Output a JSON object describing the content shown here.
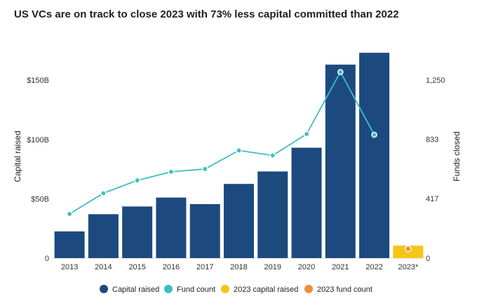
{
  "chart_data": {
    "type": "bar",
    "title": "US VCs are on track to close 2023 with 73% less capital committed than 2022",
    "categories": [
      "2013",
      "2014",
      "2015",
      "2016",
      "2017",
      "2018",
      "2019",
      "2020",
      "2021",
      "2022",
      "2023*"
    ],
    "y_left": {
      "label": "Capital raised",
      "ticks": [
        "0",
        "$50B",
        "$100B",
        "$150B"
      ],
      "tick_values": [
        0,
        50,
        100,
        150
      ],
      "range": [
        0,
        182
      ]
    },
    "y_right": {
      "label": "Funds closed",
      "ticks": [
        "0",
        "417",
        "833",
        "1,250"
      ],
      "tick_values": [
        0,
        417,
        833,
        1250
      ],
      "range": [
        0,
        1515
      ]
    },
    "series": [
      {
        "name": "Capital raised",
        "type": "bar",
        "axis": "left",
        "color": "#1c4a7e",
        "values": [
          22.5,
          37,
          43.5,
          51,
          45.5,
          62.5,
          73,
          93,
          163,
          173,
          null
        ]
      },
      {
        "name": "Fund count",
        "type": "line",
        "axis": "right",
        "color": "#3dbdc6",
        "values": [
          310,
          455,
          545,
          605,
          625,
          755,
          720,
          870,
          1305,
          865,
          null
        ]
      },
      {
        "name": "2023 capital raised",
        "type": "bar",
        "axis": "left",
        "color": "#f5c518",
        "values": [
          null,
          null,
          null,
          null,
          null,
          null,
          null,
          null,
          null,
          null,
          10.5
        ]
      },
      {
        "name": "2023 fund count",
        "type": "point",
        "axis": "right",
        "color": "#ef8e3a",
        "values": [
          null,
          null,
          null,
          null,
          null,
          null,
          null,
          null,
          null,
          null,
          65
        ]
      }
    ],
    "legend": {
      "placement": "bottom",
      "entries": [
        {
          "label": "Capital raised",
          "color": "#1c4a7e"
        },
        {
          "label": "Fund count",
          "color": "#3dbdc6"
        },
        {
          "label": "2023 capital raised",
          "color": "#f5c518"
        },
        {
          "label": "2023 fund count",
          "color": "#ef8e3a"
        }
      ]
    },
    "grid": false
  }
}
